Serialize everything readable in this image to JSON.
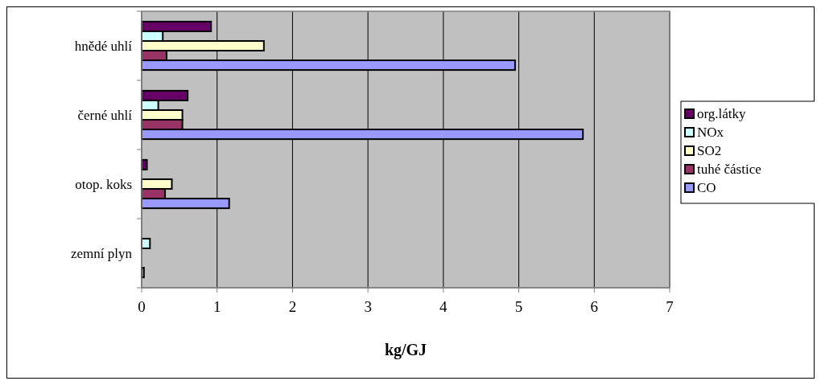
{
  "chart_data": {
    "type": "bar",
    "orientation": "horizontal",
    "xlabel": "kg/GJ",
    "categories": [
      "hnědé uhlí",
      "černé uhlí",
      "otop. koks",
      "zemní plyn"
    ],
    "series": [
      {
        "name": "org.látky",
        "color": "#660066",
        "values": [
          0.92,
          0.61,
          0.07,
          0
        ]
      },
      {
        "name": "NOx",
        "color": "#ccffff",
        "values": [
          0.28,
          0.22,
          0,
          0.11
        ]
      },
      {
        "name": "SO2",
        "color": "#ffffcc",
        "values": [
          1.62,
          0.54,
          0.4,
          0
        ]
      },
      {
        "name": "tuhé částice",
        "color": "#993366",
        "values": [
          0.33,
          0.54,
          0.31,
          0
        ]
      },
      {
        "name": "CO",
        "color": "#9999ff",
        "values": [
          4.95,
          5.85,
          1.16,
          0.03
        ]
      }
    ],
    "xlim": [
      0,
      7
    ],
    "xticks": [
      0,
      1,
      2,
      3,
      4,
      5,
      6,
      7
    ],
    "grid": "x",
    "legend": "right"
  }
}
